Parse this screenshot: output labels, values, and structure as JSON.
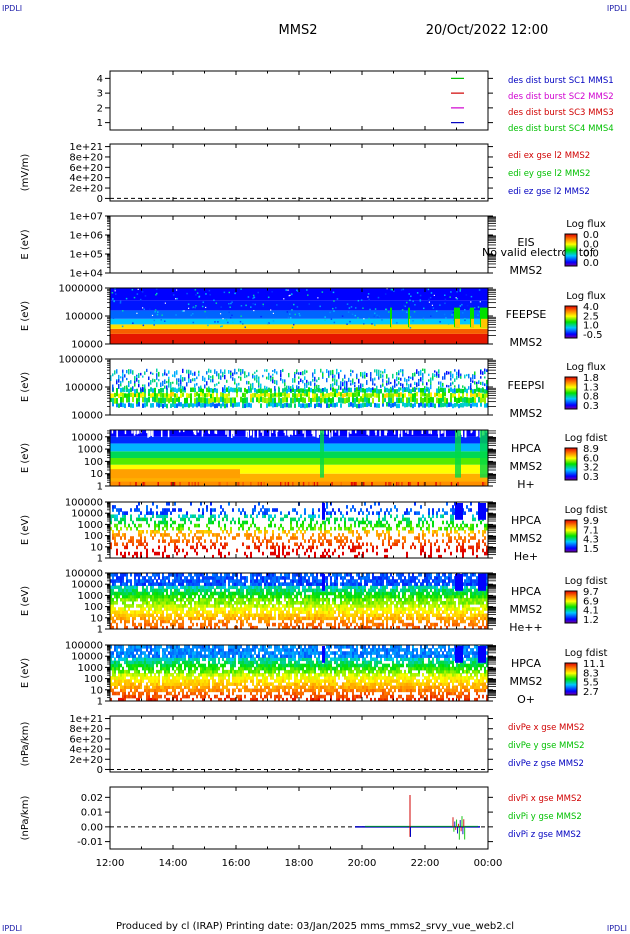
{
  "corners": {
    "top_left": "IPDLI",
    "top_right": "IPDLI",
    "bottom_left": "IPDLI",
    "bottom_right": "IPDLI"
  },
  "header": {
    "spacecraft": "MMS2",
    "datetime": "20/Oct/2022 12:00"
  },
  "footer": "Produced by cl (IRAP)   Printing date: 03/Jan/2025   mms_mms2_srvy_vue_web2.cl",
  "colors": {
    "mms1": "#00c000",
    "mms2": "#d00000",
    "mms3": "#d000d0",
    "mms4": "#0000c0",
    "x": "#d00000",
    "y": "#00c000",
    "z": "#0000c0"
  },
  "chart_data": [
    {
      "id": "p0",
      "type": "line",
      "yticks": [
        "1",
        "2",
        "3",
        "4"
      ],
      "ylim": [
        0.5,
        4.5
      ],
      "legend": [
        {
          "text": "des dist burst SC1 MMS1",
          "color": "#0000c0"
        },
        {
          "text": "des dist burst SC2 MMS2",
          "color": "#d000d0"
        },
        {
          "text": "des dist burst SC3 MMS3",
          "color": "#d00000"
        },
        {
          "text": "des dist burst SC4 MMS4",
          "color": "#00c000"
        }
      ],
      "markers": [
        {
          "y": 4,
          "color": "#00c000"
        },
        {
          "y": 3,
          "color": "#d00000"
        },
        {
          "y": 2,
          "color": "#d000d0"
        },
        {
          "y": 1,
          "color": "#0000c0"
        }
      ]
    },
    {
      "id": "p1",
      "type": "line",
      "ylabel": "(mV/m)",
      "yticks": [
        "0",
        "2e+20",
        "4e+20",
        "6e+20",
        "8e+20",
        "1e+21"
      ],
      "ylim": [
        -5e+19,
        1.05e+21
      ],
      "zero_line": true,
      "legend": [
        {
          "text": "edi ex gse l2 MMS2",
          "color": "#d00000"
        },
        {
          "text": "edi ey gse l2 MMS2",
          "color": "#00c000"
        },
        {
          "text": "edi ez gse l2 MMS2",
          "color": "#0000c0"
        }
      ]
    },
    {
      "id": "p2",
      "type": "heatmap",
      "ylabel": "E (eV)",
      "yticks": [
        "1e+04",
        "1e+05",
        "1e+06",
        "1e+07"
      ],
      "log_ylim": [
        4,
        7
      ],
      "side": [
        "EIS",
        "MMS2"
      ],
      "overlay_note": "No valid electron tof",
      "colorbar": {
        "title": "Log flux",
        "labels": [
          "0.0",
          "0.0",
          "0.0",
          "0.0"
        ]
      }
    },
    {
      "id": "p3",
      "type": "heatmap",
      "ylabel": "E (eV)",
      "yticks": [
        "10000",
        "100000",
        "1000000"
      ],
      "log_ylim": [
        4,
        6
      ],
      "side": [
        "FEEPSE",
        "MMS2"
      ],
      "colorbar": {
        "title": "Log flux",
        "labels": [
          "4.0",
          "2.5",
          "1.0",
          "-0.5"
        ]
      }
    },
    {
      "id": "p4",
      "type": "heatmap",
      "ylabel": "E (eV)",
      "yticks": [
        "10000",
        "100000",
        "1000000"
      ],
      "log_ylim": [
        4,
        6
      ],
      "side": [
        "FEEPSI",
        "MMS2"
      ],
      "colorbar": {
        "title": "Log flux",
        "labels": [
          "1.8",
          "1.3",
          "0.8",
          "0.3"
        ]
      }
    },
    {
      "id": "p5",
      "type": "heatmap",
      "ylabel": "E (eV)",
      "yticks": [
        "1",
        "10",
        "100",
        "1000",
        "10000"
      ],
      "log_ylim": [
        0,
        4.55
      ],
      "side": [
        "HPCA",
        "MMS2",
        "H+"
      ],
      "colorbar": {
        "title": "Log fdist",
        "labels": [
          "8.9",
          "6.0",
          "3.2",
          "0.3"
        ]
      }
    },
    {
      "id": "p6",
      "type": "heatmap",
      "ylabel": "E (eV)",
      "yticks": [
        "1",
        "10",
        "100",
        "1000",
        "10000",
        "100000"
      ],
      "log_ylim": [
        0,
        5
      ],
      "side": [
        "HPCA",
        "MMS2",
        "He+"
      ],
      "colorbar": {
        "title": "Log fdist",
        "labels": [
          "9.9",
          "7.1",
          "4.3",
          "1.5"
        ]
      }
    },
    {
      "id": "p7",
      "type": "heatmap",
      "ylabel": "E (eV)",
      "yticks": [
        "1",
        "10",
        "100",
        "1000",
        "10000",
        "100000"
      ],
      "log_ylim": [
        0,
        5
      ],
      "side": [
        "HPCA",
        "MMS2",
        "He++"
      ],
      "colorbar": {
        "title": "Log fdist",
        "labels": [
          "9.7",
          "6.9",
          "4.1",
          "1.2"
        ]
      }
    },
    {
      "id": "p8",
      "type": "heatmap",
      "ylabel": "E (eV)",
      "yticks": [
        "1",
        "10",
        "100",
        "1000",
        "10000",
        "100000"
      ],
      "log_ylim": [
        0,
        5
      ],
      "side": [
        "HPCA",
        "MMS2",
        "O+"
      ],
      "colorbar": {
        "title": "Log fdist",
        "labels": [
          "11.1",
          "8.3",
          "5.5",
          "2.7"
        ]
      }
    },
    {
      "id": "p9",
      "type": "line",
      "ylabel": "(nPa/km)",
      "yticks": [
        "0",
        "2e+20",
        "4e+20",
        "6e+20",
        "8e+20",
        "1e+21"
      ],
      "ylim": [
        -5e+19,
        1.05e+21
      ],
      "zero_line": true,
      "legend": [
        {
          "text": "divPe x gse MMS2",
          "color": "#d00000"
        },
        {
          "text": "divPe y gse MMS2",
          "color": "#00c000"
        },
        {
          "text": "divPe z gse MMS2",
          "color": "#0000c0"
        }
      ]
    },
    {
      "id": "p10",
      "type": "line",
      "ylabel": "(nPa/km)",
      "yticks": [
        "-0.01",
        "0.00",
        "0.01",
        "0.02"
      ],
      "ylim": [
        -0.015,
        0.027
      ],
      "zero_line": true,
      "legend": [
        {
          "text": "divPi x gse MMS2",
          "color": "#d00000"
        },
        {
          "text": "divPi y gse MMS2",
          "color": "#00c000"
        },
        {
          "text": "divPi z gse MMS2",
          "color": "#0000c0"
        }
      ]
    }
  ],
  "xaxis": {
    "ticks": [
      "12:00",
      "14:00",
      "16:00",
      "18:00",
      "20:00",
      "22:00",
      "00:00"
    ]
  }
}
